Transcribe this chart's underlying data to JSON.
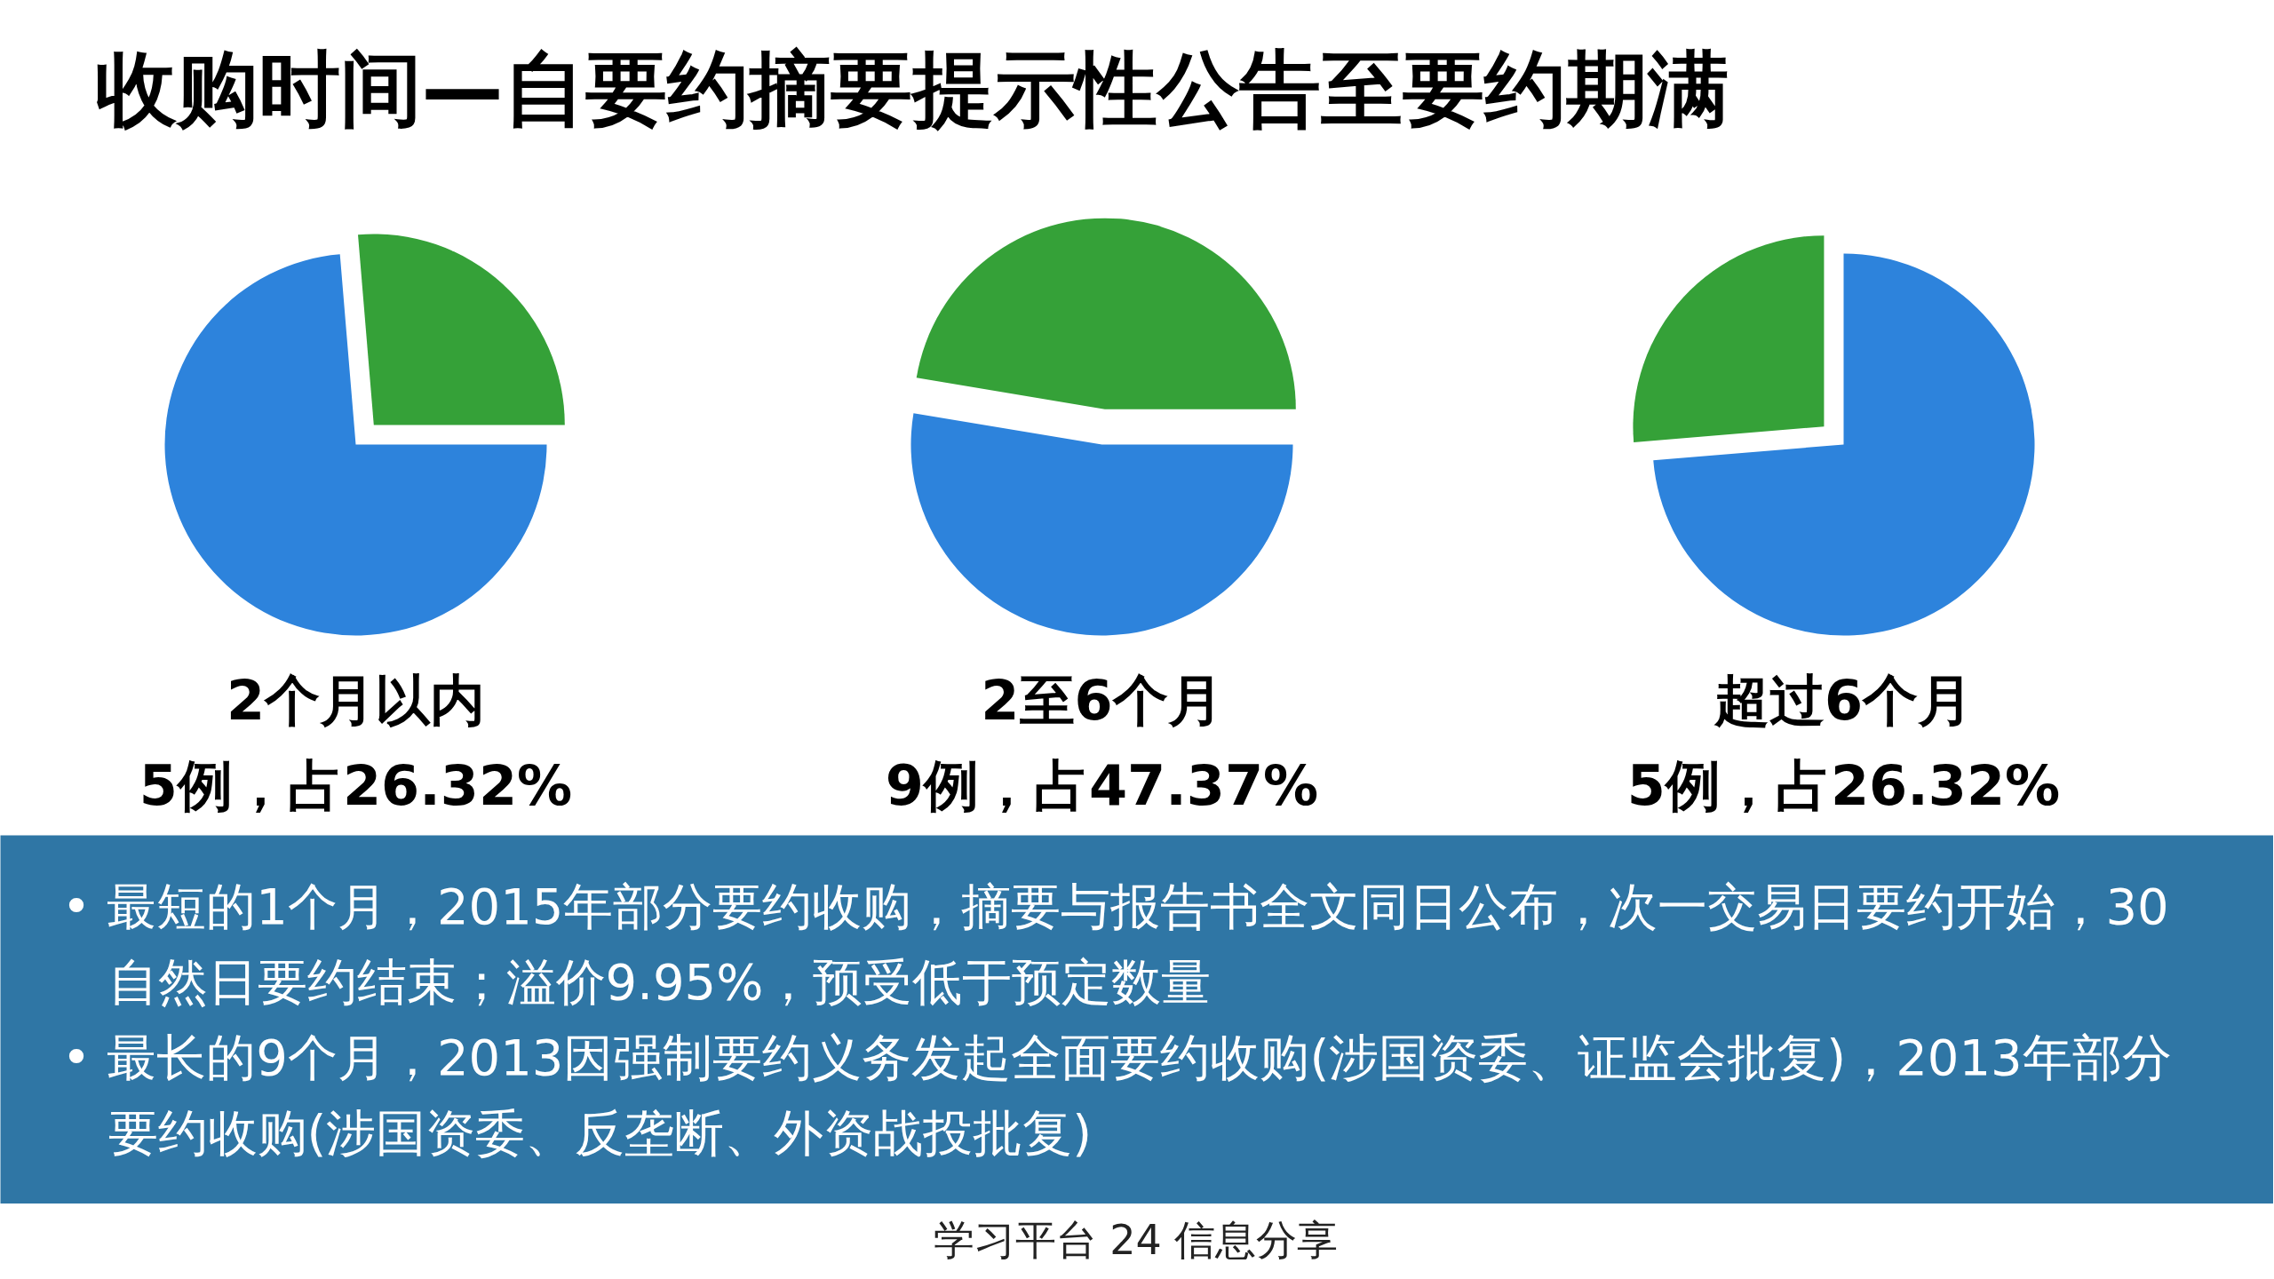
{
  "chart_data": [
    {
      "type": "other",
      "title": "收购时间—自要约摘要提示性公告至要约期满"
    },
    {
      "type": "pie",
      "title": "2个月以内",
      "subtitle": "5例，占26.32%",
      "categories": [
        null,
        null
      ],
      "values": [
        26.32,
        73.68
      ],
      "colors": [
        "#35a138",
        "#2d83dc"
      ]
    },
    {
      "type": "pie",
      "title": "2至6个月",
      "subtitle": "9例，占47.37%",
      "categories": [
        null,
        null
      ],
      "values": [
        47.37,
        52.63
      ],
      "colors": [
        "#35a138",
        "#2d83dc"
      ]
    },
    {
      "type": "pie",
      "title": "超过6个月",
      "subtitle": "5例，占26.32%",
      "categories": [
        null,
        null
      ],
      "values": [
        26.32,
        73.68
      ],
      "colors": [
        "#35a138",
        "#2d83dc"
      ]
    },
    {
      "type": "other",
      "annotations": [
        "• 最短的1个月，2015年部分要约收购，摘要与报告书全文同日公布，次一交易日要约开始，30自然日要约结束；溢价9.95%，预受低于预定数量",
        "• 最长的9个月，2013因强制要约义务发起全面要约收购(涉国资委、证监会批复)，2013年部分要约收购(涉国资委、反垄断、外资战投批复)",
        "学习平台 24 信息分享"
      ]
    }
  ]
}
